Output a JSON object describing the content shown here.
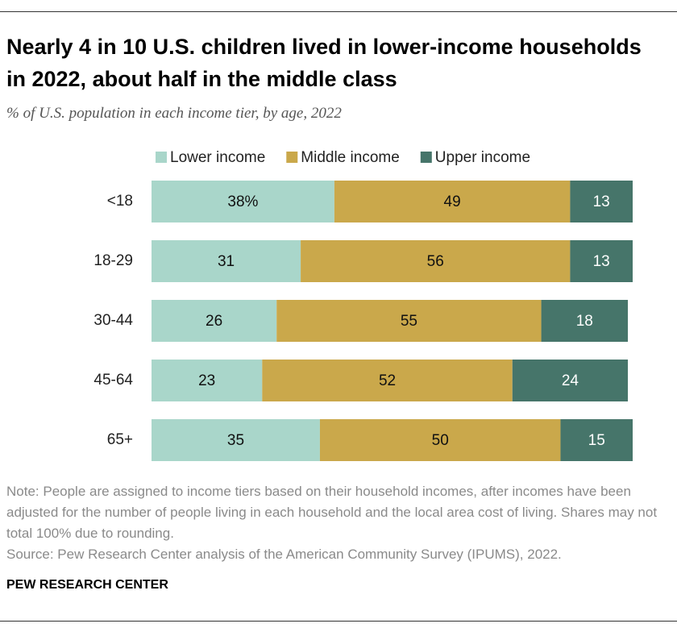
{
  "chart_data": {
    "type": "stacked-bar-horizontal",
    "title": "Nearly 4 in 10 U.S. children lived in lower-income households in 2022, about half in the middle class",
    "subtitle": "% of U.S. population in each income tier, by age, 2022",
    "categories": [
      "<18",
      "18-29",
      "30-44",
      "45-64",
      "65+"
    ],
    "series": [
      {
        "name": "Lower income",
        "color": "#a9d6ca",
        "values": [
          38,
          31,
          26,
          23,
          35
        ],
        "value_labels": [
          "38%",
          "31",
          "26",
          "23",
          "35"
        ]
      },
      {
        "name": "Middle income",
        "color": "#caa84b",
        "values": [
          49,
          56,
          55,
          52,
          50
        ]
      },
      {
        "name": "Upper income",
        "color": "#46756a",
        "values": [
          13,
          13,
          18,
          24,
          15
        ]
      }
    ],
    "xlim": [
      0,
      100
    ],
    "note": "Note: People are assigned to income tiers based on their household incomes, after incomes have been adjusted for the number of people living in each household and the local area cost of living. Shares may not total 100% due to rounding.",
    "source": "Source: Pew Research Center analysis of the American Community Survey (IPUMS), 2022.",
    "credit": "PEW RESEARCH CENTER"
  }
}
